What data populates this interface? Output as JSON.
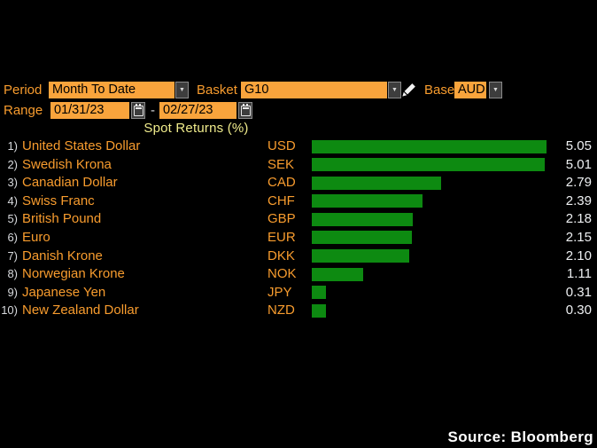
{
  "controls": {
    "period_label": "Period",
    "period_value": "Month To Date",
    "basket_label": "Basket",
    "basket_value": "G10",
    "base_label": "Base",
    "base_value": "AUD",
    "range_label": "Range",
    "range_start": "01/31/23",
    "range_separator": "-",
    "range_end": "02/27/23",
    "dropdown_arrow_glyph": "▼"
  },
  "chart_data": {
    "type": "bar",
    "orientation": "horizontal",
    "title": "Spot Returns (%)",
    "xlim": [
      0,
      5.05
    ],
    "grid": false,
    "legend": "none",
    "bar_color": "#0d8a11",
    "rows": [
      {
        "rank": "1)",
        "name": "United States Dollar",
        "code": "USD",
        "value": 5.05
      },
      {
        "rank": "2)",
        "name": "Swedish Krona",
        "code": "SEK",
        "value": 5.01
      },
      {
        "rank": "3)",
        "name": "Canadian Dollar",
        "code": "CAD",
        "value": 2.79
      },
      {
        "rank": "4)",
        "name": "Swiss Franc",
        "code": "CHF",
        "value": 2.39
      },
      {
        "rank": "5)",
        "name": "British Pound",
        "code": "GBP",
        "value": 2.18
      },
      {
        "rank": "6)",
        "name": "Euro",
        "code": "EUR",
        "value": 2.15
      },
      {
        "rank": "7)",
        "name": "Danish Krone",
        "code": "DKK",
        "value": 2.1
      },
      {
        "rank": "8)",
        "name": "Norwegian Krone",
        "code": "NOK",
        "value": 1.11
      },
      {
        "rank": "9)",
        "name": "Japanese Yen",
        "code": "JPY",
        "value": 0.31
      },
      {
        "rank": "10)",
        "name": "New Zealand Dollar",
        "code": "NZD",
        "value": 0.3
      }
    ]
  },
  "footer": {
    "source": "Source: Bloomberg"
  },
  "colors": {
    "background": "#000000",
    "label_orange": "#f89c2e",
    "field_orange": "#f9a43c",
    "title_yellow": "#f0ec8c",
    "bar_green": "#0d8a11",
    "value_white": "#eef0f2",
    "button_gray": "#3d3d3d"
  }
}
